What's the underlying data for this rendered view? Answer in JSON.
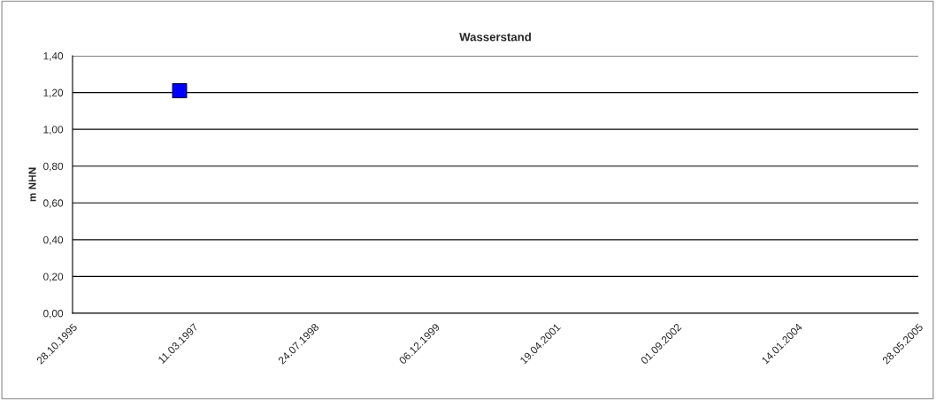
{
  "chart_data": {
    "type": "scatter",
    "title": "Wasserstand",
    "ylabel": "m NHN",
    "x": [
      "1997-01-13"
    ],
    "series": [
      {
        "color": "#0000ff",
        "values": [
          1.21
        ]
      }
    ],
    "marker": "square",
    "grid": "y",
    "xlim": [
      "1995-10-28",
      "2005-05-28"
    ],
    "xticks": [
      {
        "value": "1995-10-28",
        "label": "28.10.1995"
      },
      {
        "value": "1997-03-11",
        "label": "11.03.1997"
      },
      {
        "value": "1998-07-24",
        "label": "24.07.1998"
      },
      {
        "value": "1999-12-06",
        "label": "06.12.1999"
      },
      {
        "value": "2001-04-19",
        "label": "19.04.2001"
      },
      {
        "value": "2002-09-01",
        "label": "01.09.2002"
      },
      {
        "value": "2004-01-14",
        "label": "14.01.2004"
      },
      {
        "value": "2005-05-28",
        "label": "28.05.2005"
      }
    ],
    "ylim": [
      0,
      1.4
    ],
    "yticks": [
      {
        "value": 0,
        "label": "0,00"
      },
      {
        "value": 0.2,
        "label": "0,20"
      },
      {
        "value": 0.4,
        "label": "0,40"
      },
      {
        "value": 0.6,
        "label": "0,60"
      },
      {
        "value": 0.8,
        "label": "0,80"
      },
      {
        "value": 1.0,
        "label": "1,00"
      },
      {
        "value": 1.2,
        "label": "1,20"
      },
      {
        "value": 1.4,
        "label": "1,40"
      }
    ]
  }
}
